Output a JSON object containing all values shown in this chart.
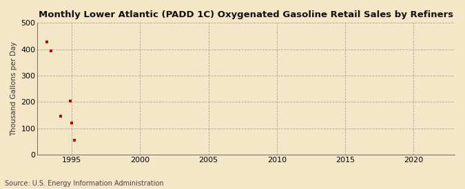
{
  "title": "Monthly Lower Atlantic (PADD 1C) Oxygenated Gasoline Retail Sales by Refiners",
  "ylabel": "Thousand Gallons per Day",
  "source": "Source: U.S. Energy Information Administration",
  "background_color": "#f5e6c8",
  "plot_bg_color": "#f5e6c8",
  "marker_color": "#cc0000",
  "marker": "s",
  "marker_size": 3.5,
  "xlim": [
    1992.5,
    2023
  ],
  "ylim": [
    0,
    500
  ],
  "yticks": [
    0,
    100,
    200,
    300,
    400,
    500
  ],
  "xticks": [
    1995,
    2000,
    2005,
    2010,
    2015,
    2020
  ],
  "data_x": [
    1993.2,
    1993.5,
    1994.2,
    1994.9,
    1995.0,
    1995.2
  ],
  "data_y": [
    428,
    393,
    147,
    205,
    120,
    55
  ]
}
